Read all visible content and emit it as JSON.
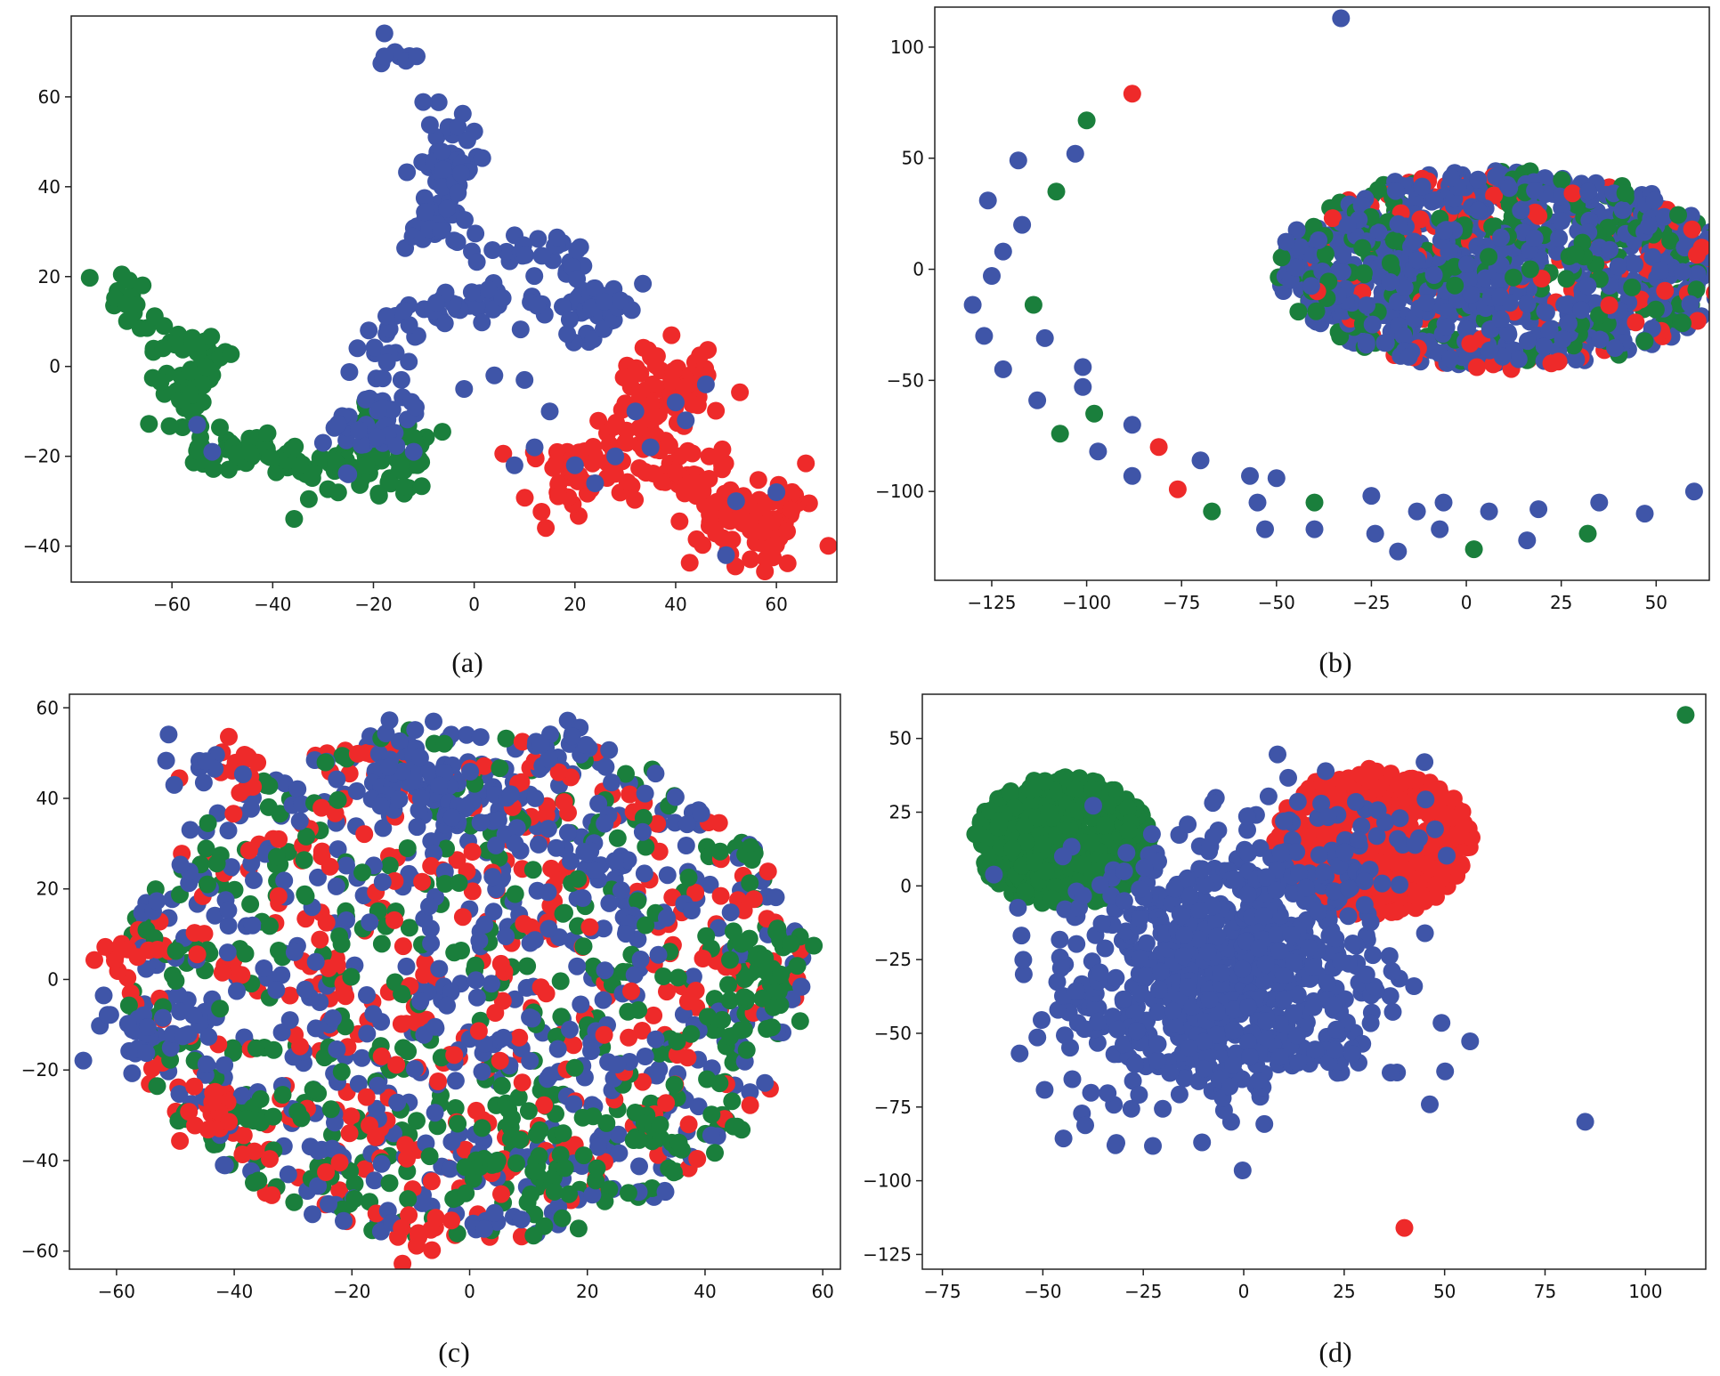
{
  "figure": {
    "captions": [
      "(a)",
      "(b)",
      "(c)",
      "(d)"
    ]
  },
  "colors": {
    "green": "#1a7f3c",
    "red": "#ee2a2a",
    "blue": "#3f55a8"
  },
  "chart_data": [
    {
      "panel": "a",
      "type": "scatter",
      "caption": "(a)",
      "xlim": [
        -80,
        72
      ],
      "ylim": [
        -48,
        78
      ],
      "xticks": [
        -60,
        -40,
        -20,
        0,
        20,
        40,
        60
      ],
      "yticks": [
        -40,
        -20,
        0,
        20,
        40,
        60
      ],
      "series": [
        {
          "name": "green",
          "color": "#1a7f3c",
          "mode": "path",
          "count": 200,
          "spread": 2.5,
          "path": [
            [
              -70,
              20
            ],
            [
              -68,
              12
            ],
            [
              -60,
              5
            ],
            [
              -52,
              2
            ],
            [
              -58,
              -6
            ],
            [
              -55,
              -15
            ],
            [
              -50,
              -20
            ],
            [
              -42,
              -18
            ],
            [
              -35,
              -23
            ],
            [
              -28,
              -24
            ],
            [
              -20,
              -18
            ],
            [
              -22,
              -8
            ],
            [
              -18,
              -26
            ],
            [
              -12,
              -16
            ],
            [
              -15,
              -25
            ]
          ]
        },
        {
          "name": "blue",
          "color": "#3f55a8",
          "mode": "path",
          "count": 240,
          "spread": 2.5,
          "path": [
            [
              -17,
              70
            ],
            [
              -12,
              65
            ],
            [
              -10,
              48
            ],
            [
              -4,
              42
            ],
            [
              -2,
              55
            ],
            [
              -6,
              35
            ],
            [
              -10,
              30
            ],
            [
              5,
              27
            ],
            [
              15,
              28
            ],
            [
              20,
              20
            ],
            [
              25,
              12
            ],
            [
              28,
              17
            ],
            [
              20,
              8
            ],
            [
              10,
              13
            ],
            [
              0,
              14
            ],
            [
              -8,
              12
            ],
            [
              -18,
              8
            ],
            [
              -14,
              -5
            ],
            [
              -18,
              -18
            ],
            [
              -25,
              -12
            ],
            [
              -20,
              -5
            ]
          ]
        },
        {
          "name": "red",
          "color": "#ee2a2a",
          "mode": "path",
          "count": 240,
          "spread": 3.5,
          "path": [
            [
              30,
              0
            ],
            [
              40,
              -5
            ],
            [
              45,
              0
            ],
            [
              35,
              -12
            ],
            [
              25,
              -18
            ],
            [
              20,
              -28
            ],
            [
              15,
              -22
            ],
            [
              30,
              -25
            ],
            [
              40,
              -22
            ],
            [
              48,
              -30
            ],
            [
              55,
              -35
            ],
            [
              62,
              -30
            ],
            [
              58,
              -40
            ],
            [
              50,
              -42
            ],
            [
              45,
              -28
            ],
            [
              38,
              -15
            ]
          ]
        },
        {
          "name": "blue-overlay",
          "color": "#3f55a8",
          "mode": "points",
          "points": [
            [
              -55,
              -13
            ],
            [
              -52,
              -19
            ],
            [
              -30,
              -17
            ],
            [
              -25,
              -24
            ],
            [
              -12,
              -19
            ],
            [
              -2,
              -5
            ],
            [
              8,
              -22
            ],
            [
              12,
              -18
            ],
            [
              20,
              -22
            ],
            [
              24,
              -26
            ],
            [
              28,
              -20
            ],
            [
              35,
              -18
            ],
            [
              40,
              -8
            ],
            [
              46,
              -4
            ],
            [
              50,
              -42
            ],
            [
              52,
              -30
            ],
            [
              42,
              -12
            ],
            [
              32,
              -10
            ],
            [
              15,
              -10
            ],
            [
              10,
              -3
            ],
            [
              4,
              -2
            ],
            [
              60,
              -28
            ]
          ]
        }
      ]
    },
    {
      "panel": "b",
      "type": "scatter",
      "caption": "(b)",
      "xlim": [
        -140,
        64
      ],
      "ylim": [
        -140,
        118
      ],
      "xticks": [
        -125,
        -100,
        -75,
        -50,
        -25,
        0,
        25,
        50
      ],
      "yticks": [
        -100,
        -50,
        0,
        50,
        100
      ],
      "series": [
        {
          "name": "ellipse",
          "mode": "ellipse",
          "count": 1100,
          "center": [
            10,
            0
          ],
          "radii": [
            60,
            45
          ],
          "colors": [
            "#3f55a8",
            "#3f55a8",
            "#3f55a8",
            "#3f55a8",
            "#3f55a8",
            "#1a7f3c",
            "#1a7f3c",
            "#ee2a2a"
          ]
        },
        {
          "name": "arc",
          "mode": "colored-points",
          "points": [
            [
              -33,
              113,
              "b"
            ],
            [
              -88,
              79,
              "r"
            ],
            [
              -100,
              67,
              "g"
            ],
            [
              -118,
              49,
              "b"
            ],
            [
              -103,
              52,
              "b"
            ],
            [
              -108,
              35,
              "g"
            ],
            [
              -126,
              31,
              "b"
            ],
            [
              -117,
              20,
              "b"
            ],
            [
              -122,
              8,
              "b"
            ],
            [
              -125,
              -3,
              "b"
            ],
            [
              -130,
              -16,
              "b"
            ],
            [
              -114,
              -16,
              "g"
            ],
            [
              -127,
              -30,
              "b"
            ],
            [
              -111,
              -31,
              "b"
            ],
            [
              -122,
              -45,
              "b"
            ],
            [
              -101,
              -44,
              "b"
            ],
            [
              -101,
              -53,
              "b"
            ],
            [
              -113,
              -59,
              "b"
            ],
            [
              -98,
              -65,
              "g"
            ],
            [
              -107,
              -74,
              "g"
            ],
            [
              -88,
              -70,
              "b"
            ],
            [
              -81,
              -80,
              "r"
            ],
            [
              -97,
              -82,
              "b"
            ],
            [
              -70,
              -86,
              "b"
            ],
            [
              -88,
              -93,
              "b"
            ],
            [
              -57,
              -93,
              "b"
            ],
            [
              -76,
              -99,
              "r"
            ],
            [
              -50,
              -94,
              "b"
            ],
            [
              -67,
              -109,
              "g"
            ],
            [
              -55,
              -105,
              "b"
            ],
            [
              -40,
              -105,
              "g"
            ],
            [
              -25,
              -102,
              "b"
            ],
            [
              -13,
              -109,
              "b"
            ],
            [
              -6,
              -105,
              "b"
            ],
            [
              6,
              -109,
              "b"
            ],
            [
              19,
              -108,
              "b"
            ],
            [
              35,
              -105,
              "b"
            ],
            [
              47,
              -110,
              "b"
            ],
            [
              60,
              -100,
              "b"
            ],
            [
              -53,
              -117,
              "b"
            ],
            [
              -40,
              -117,
              "b"
            ],
            [
              -24,
              -119,
              "b"
            ],
            [
              -18,
              -127,
              "b"
            ],
            [
              -7,
              -117,
              "b"
            ],
            [
              2,
              -126,
              "g"
            ],
            [
              16,
              -122,
              "b"
            ],
            [
              32,
              -119,
              "g"
            ]
          ]
        }
      ]
    },
    {
      "panel": "c",
      "type": "scatter",
      "caption": "(c)",
      "xlim": [
        -68,
        63
      ],
      "ylim": [
        -64,
        63
      ],
      "xticks": [
        -60,
        -40,
        -20,
        0,
        20,
        40,
        60
      ],
      "yticks": [
        -60,
        -40,
        -20,
        0,
        20,
        40,
        60
      ],
      "series": [
        {
          "name": "blob",
          "mode": "ellipse",
          "count": 1350,
          "center": [
            -1,
            -1
          ],
          "radii": [
            58,
            57
          ],
          "colors": [
            "#3f55a8",
            "#3f55a8",
            "#3f55a8",
            "#ee2a2a",
            "#ee2a2a",
            "#1a7f3c",
            "#1a7f3c"
          ]
        },
        {
          "name": "clusters",
          "mode": "clusters",
          "clusters": [
            [
              -10,
              45,
              5,
              "b",
              40
            ],
            [
              -2,
              38,
              4,
              "b",
              25
            ],
            [
              16,
              52,
              3,
              "b",
              15
            ],
            [
              22,
              28,
              4,
              "b",
              15
            ],
            [
              -40,
              47,
              3,
              "r",
              15
            ],
            [
              -45,
              47,
              3,
              "b",
              10
            ],
            [
              -55,
              -12,
              4,
              "b",
              25
            ],
            [
              -60,
              5,
              3,
              "r",
              10
            ],
            [
              10,
              -40,
              6,
              "g",
              40
            ],
            [
              50,
              3,
              5,
              "g",
              25
            ],
            [
              45,
              -10,
              4,
              "g",
              15
            ],
            [
              -42,
              -30,
              4,
              "r",
              15
            ],
            [
              -8,
              -56,
              3,
              "r",
              10
            ],
            [
              -35,
              -30,
              3,
              "g",
              10
            ],
            [
              30,
              -35,
              3,
              "g",
              10
            ]
          ]
        }
      ]
    },
    {
      "panel": "d",
      "type": "scatter",
      "caption": "(d)",
      "xlim": [
        -80,
        115
      ],
      "ylim": [
        -130,
        65
      ],
      "xticks": [
        -75,
        -50,
        -25,
        0,
        25,
        50,
        75,
        100
      ],
      "yticks": [
        -125,
        -100,
        -75,
        -50,
        -25,
        0,
        25,
        50
      ],
      "series": [
        {
          "name": "green",
          "mode": "ellipse",
          "count": 500,
          "center": [
            -45,
            15
          ],
          "radii": [
            22,
            22
          ],
          "colors": [
            "#1a7f3c"
          ]
        },
        {
          "name": "red",
          "mode": "ellipse",
          "count": 500,
          "center": [
            32,
            15
          ],
          "radii": [
            25,
            25
          ],
          "colors": [
            "#ee2a2a"
          ]
        },
        {
          "name": "blue",
          "mode": "clusters",
          "clusters": [
            [
              -5,
              -35,
              20,
              "b",
              600
            ],
            [
              0,
              -5,
              15,
              "b",
              150
            ],
            [
              25,
              15,
              12,
              "b",
              40
            ],
            [
              -35,
              0,
              8,
              "b",
              10
            ]
          ]
        },
        {
          "name": "outliers",
          "mode": "colored-points",
          "points": [
            [
              110,
              58,
              "g"
            ],
            [
              85,
              -80,
              "b"
            ],
            [
              40,
              -116,
              "r"
            ],
            [
              45,
              42,
              "b"
            ],
            [
              -45,
              10,
              "b"
            ]
          ]
        }
      ]
    }
  ]
}
